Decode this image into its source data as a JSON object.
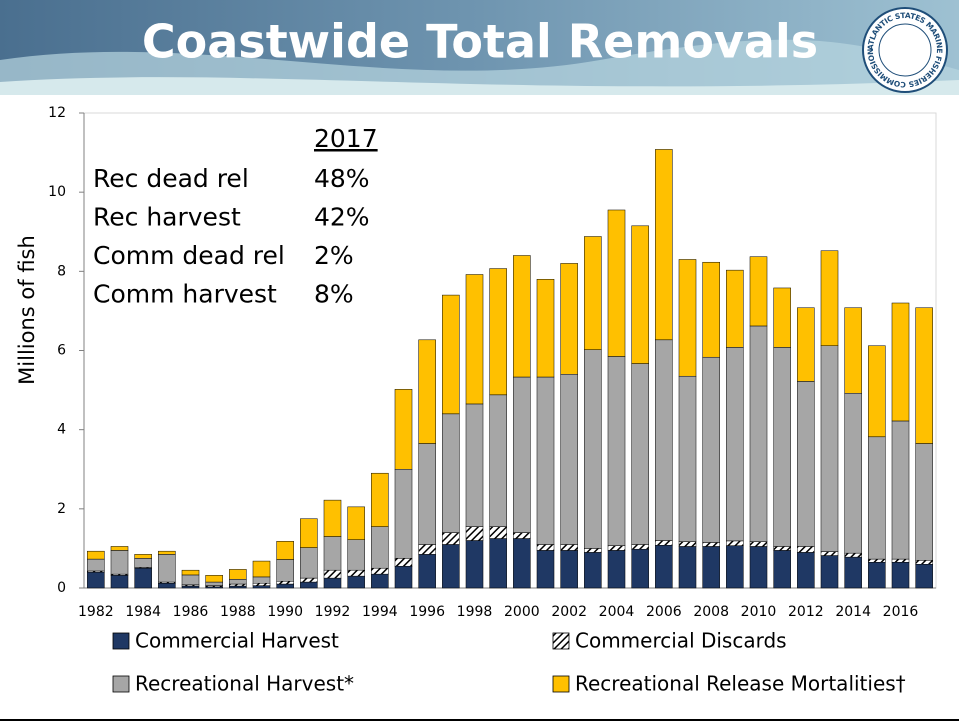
{
  "logo": "ATLANTIC STATES MARINE FISHERIES COMMISSION",
  "chart_data": {
    "type": "stacked_bar",
    "title": "Coastwide Total Removals",
    "y_label": "Millions of fish",
    "categories": [
      "1982",
      null,
      "1984",
      null,
      "1986",
      null,
      "1988",
      null,
      "1990",
      null,
      "1992",
      null,
      "1994",
      null,
      "1996",
      null,
      "1998",
      null,
      "2000",
      null,
      "2002",
      null,
      "2004",
      null,
      "2006",
      null,
      "2008",
      null,
      "2010",
      null,
      "2012",
      null,
      "2014",
      null,
      "2016",
      null
    ],
    "series": [
      {
        "name": "Commercial Harvest",
        "color": "#1f3864",
        "values": [
          0.4,
          0.32,
          0.5,
          0.12,
          0.05,
          0.03,
          0.05,
          0.06,
          0.1,
          0.15,
          0.25,
          0.3,
          0.35,
          0.55,
          0.85,
          1.1,
          1.2,
          1.25,
          1.25,
          0.95,
          0.95,
          0.9,
          0.95,
          0.98,
          1.08,
          1.05,
          1.05,
          1.07,
          1.05,
          0.95,
          0.9,
          0.82,
          0.78,
          0.65,
          0.65,
          0.6
        ]
      },
      {
        "name": "Commercial Discards",
        "color": "#000000",
        "pattern": "hatch",
        "values": [
          0.03,
          0.03,
          0.02,
          0.03,
          0.03,
          0.03,
          0.05,
          0.06,
          0.07,
          0.1,
          0.2,
          0.15,
          0.15,
          0.2,
          0.25,
          0.3,
          0.35,
          0.3,
          0.15,
          0.15,
          0.15,
          0.1,
          0.12,
          0.12,
          0.12,
          0.12,
          0.1,
          0.12,
          0.12,
          0.1,
          0.15,
          0.1,
          0.1,
          0.08,
          0.08,
          0.1
        ]
      },
      {
        "name": "Recreational Harvest*",
        "color": "#a6a6a6",
        "values": [
          0.3,
          0.6,
          0.23,
          0.7,
          0.25,
          0.09,
          0.12,
          0.16,
          0.55,
          0.77,
          0.85,
          0.77,
          1.05,
          2.25,
          2.55,
          3.0,
          3.1,
          3.33,
          3.93,
          4.23,
          4.3,
          5.02,
          4.78,
          4.57,
          5.07,
          4.18,
          4.68,
          4.89,
          5.45,
          5.03,
          4.17,
          5.2,
          4.04,
          3.09,
          3.49,
          2.95
        ]
      },
      {
        "name": "Recreational Release Mortalities†",
        "color": "#ffc000",
        "values": [
          0.2,
          0.1,
          0.1,
          0.08,
          0.12,
          0.17,
          0.25,
          0.4,
          0.46,
          0.73,
          0.92,
          0.83,
          1.35,
          2.02,
          2.62,
          3.0,
          3.27,
          3.19,
          3.07,
          2.47,
          2.8,
          2.86,
          3.7,
          3.48,
          4.81,
          2.95,
          2.4,
          1.95,
          1.75,
          1.5,
          1.86,
          2.4,
          2.16,
          2.3,
          2.98,
          3.43
        ]
      }
    ],
    "ylim": [
      0,
      12
    ],
    "yticks": [
      0,
      2,
      4,
      6,
      8,
      10,
      12
    ],
    "grid": false,
    "annotation": {
      "header": "2017",
      "rows": [
        [
          "Rec dead rel",
          "48%"
        ],
        [
          "Rec harvest",
          "42%"
        ],
        [
          "Comm dead rel",
          "2%"
        ],
        [
          "Comm harvest",
          "8%"
        ]
      ]
    }
  }
}
